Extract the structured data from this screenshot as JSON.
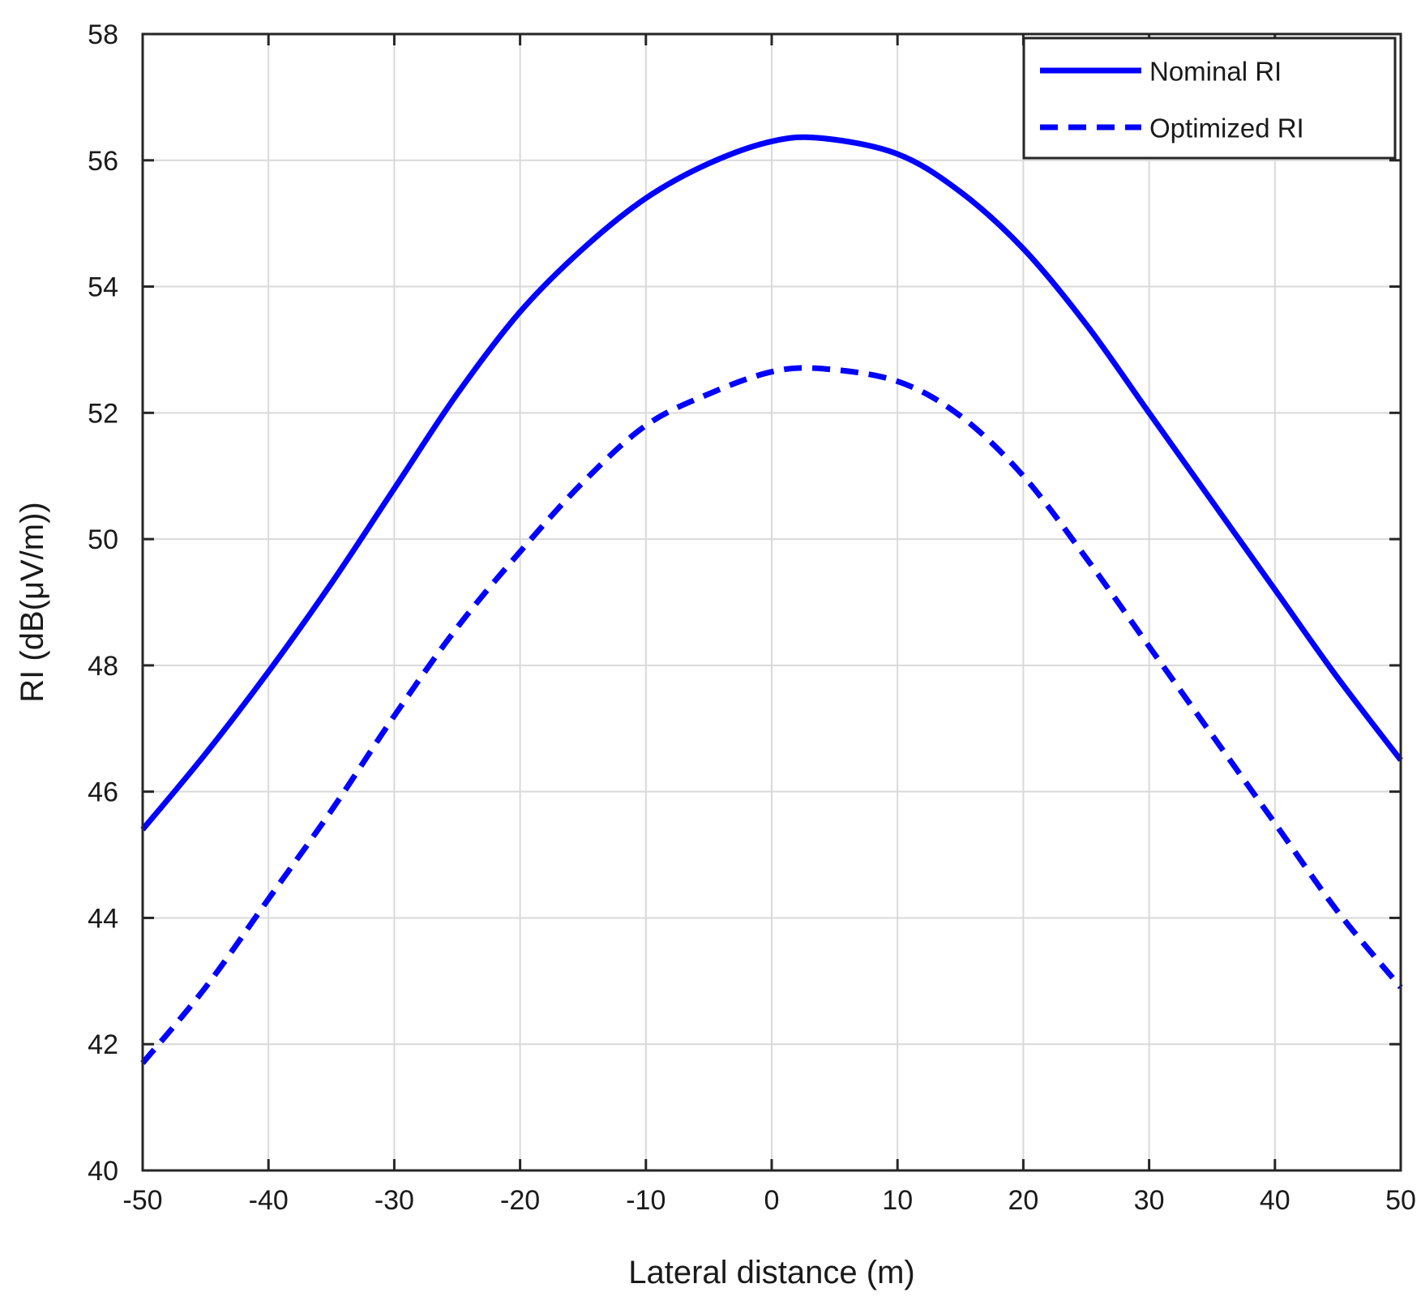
{
  "chart_data": {
    "type": "line",
    "xlabel": "Lateral distance (m)",
    "ylabel": "RI (dB(μV/m))",
    "xlim": [
      -50,
      50
    ],
    "ylim": [
      40,
      58
    ],
    "xticks": [
      -50,
      -40,
      -30,
      -20,
      -10,
      0,
      10,
      20,
      30,
      40,
      50
    ],
    "yticks": [
      40,
      42,
      44,
      46,
      48,
      50,
      52,
      54,
      56,
      58
    ],
    "grid": true,
    "legend_position": "top-right",
    "x": [
      -50,
      -45,
      -40,
      -35,
      -30,
      -25,
      -20,
      -15,
      -10,
      -5,
      0,
      4,
      10,
      15,
      20,
      25,
      30,
      35,
      40,
      45,
      50
    ],
    "series": [
      {
        "name": "Nominal RI",
        "line_style": "solid",
        "color": "#0000ff",
        "values": [
          45.4,
          46.6,
          47.9,
          49.3,
          50.8,
          52.3,
          53.6,
          54.6,
          55.4,
          55.95,
          56.3,
          56.35,
          56.1,
          55.5,
          54.6,
          53.4,
          52.0,
          50.6,
          49.2,
          47.8,
          46.5
        ]
      },
      {
        "name": "Optimized RI",
        "line_style": "dashed",
        "color": "#0000ff",
        "values": [
          41.7,
          42.9,
          44.3,
          45.7,
          47.2,
          48.6,
          49.8,
          50.9,
          51.8,
          52.3,
          52.65,
          52.7,
          52.5,
          51.95,
          51.0,
          49.7,
          48.3,
          46.9,
          45.5,
          44.1,
          42.9
        ]
      }
    ]
  }
}
